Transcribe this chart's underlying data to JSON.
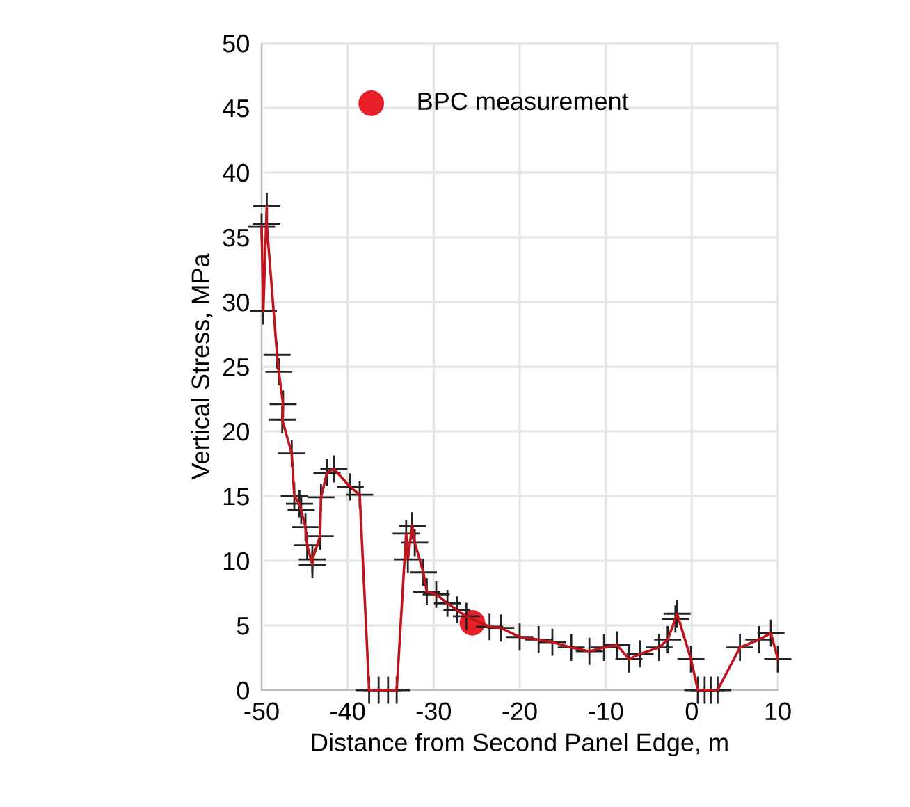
{
  "chart_data": {
    "type": "line",
    "xlabel": "Distance from Second Panel Edge, m",
    "ylabel": "Vertical Stress, MPa",
    "xlim": [
      -50,
      10
    ],
    "xticks": [
      -50,
      -40,
      -30,
      -20,
      -10,
      0,
      10
    ],
    "ylim": [
      0,
      50
    ],
    "yticks": [
      0,
      5,
      10,
      15,
      20,
      25,
      30,
      35,
      40,
      45,
      50
    ],
    "grid": true,
    "legend": "top left",
    "series": [
      {
        "type": "line",
        "color": "#c0141c",
        "marker": "cross",
        "line_style": "solid",
        "x": [
          -50.0,
          -49.8,
          -49.4,
          -49.4,
          -48.2,
          -48.0,
          -47.5,
          -47.6,
          -46.5,
          -46.2,
          -45.6,
          -45.4,
          -44.9,
          -44.7,
          -44.1,
          -44.1,
          -43.2,
          -43.1,
          -42.4,
          -41.6,
          -39.7,
          -38.6,
          -37.5,
          -36.4,
          -35.3,
          -34.3,
          -33.2,
          -33.0,
          -32.5,
          -32.2,
          -31.2,
          -30.8,
          -29.7,
          -28.4,
          -27.3,
          -26.2,
          -23.5,
          -22.2,
          -20.0,
          -17.8,
          -16.2,
          -14.0,
          -11.9,
          -10.2,
          -8.7,
          -7.3,
          -6.0,
          -3.8,
          -2.8,
          -1.9,
          -1.7,
          -0.1,
          0.7,
          1.5,
          2.2,
          3.0,
          5.6,
          7.8,
          9.2,
          10.0
        ],
        "values": [
          35.8,
          29.3,
          37.4,
          36.0,
          25.9,
          24.6,
          22.1,
          20.9,
          18.3,
          15.0,
          14.4,
          13.9,
          12.6,
          11.2,
          9.7,
          10.1,
          11.9,
          14.9,
          16.8,
          17.1,
          15.7,
          15.1,
          0,
          0,
          0,
          0,
          12.1,
          10.1,
          12.7,
          11.4,
          9.1,
          7.6,
          7.4,
          6.7,
          6.2,
          5.7,
          4.9,
          4.8,
          4.1,
          3.9,
          3.7,
          3.3,
          3.0,
          3.3,
          3.5,
          2.4,
          2.8,
          3.3,
          3.9,
          5.5,
          5.9,
          2.4,
          0,
          0,
          0,
          0,
          3.3,
          3.9,
          4.4,
          2.4
        ]
      },
      {
        "type": "scatter",
        "name": "BPC measurement",
        "color": "#e8202a",
        "marker": "circle",
        "x": [
          -25.5
        ],
        "values": [
          5.2
        ]
      }
    ]
  }
}
